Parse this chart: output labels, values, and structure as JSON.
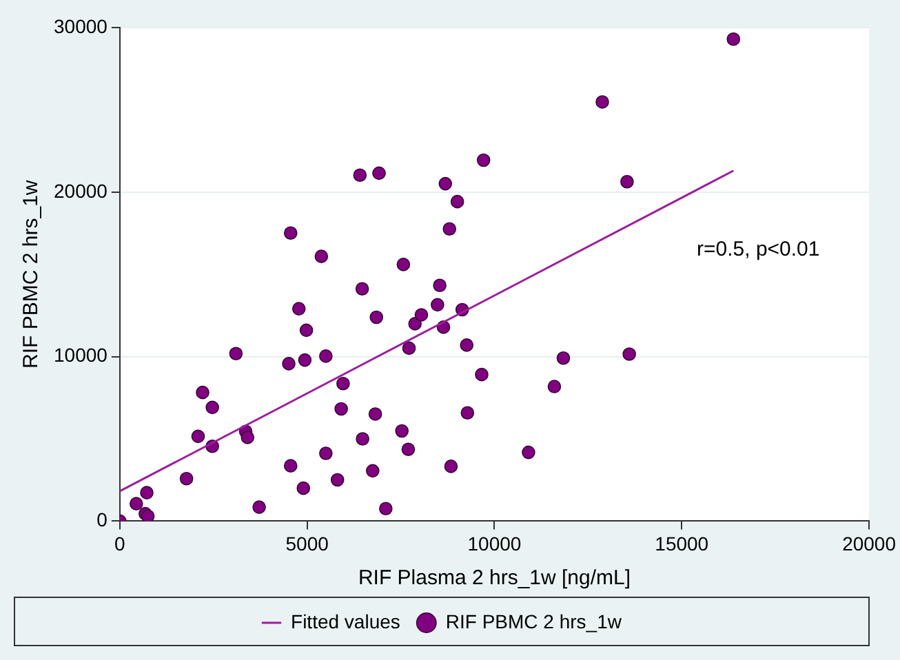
{
  "chart_data": {
    "type": "scatter",
    "xlabel": "RIF Plasma 2 hrs_1w [ng/mL]",
    "ylabel": "RIF PBMC 2 hrs_1w",
    "xlim": [
      0,
      20000
    ],
    "xticks": [
      0,
      5000,
      10000,
      15000,
      20000
    ],
    "ylim": [
      0,
      30000
    ],
    "yticks": [
      0,
      10000,
      20000,
      30000
    ],
    "grid": "y",
    "legend": "bottom",
    "line_style": "solid",
    "annotations": [
      "r=0.5, p<0.01"
    ],
    "series": [
      {
        "name": "Fitted values",
        "type": "line",
        "color": "#9b1f9b",
        "x": [
          0,
          16380
        ],
        "values": [
          1820,
          21300
        ]
      },
      {
        "name": "RIF PBMC 2 hrs_1w",
        "type": "scatter",
        "marker": "circle",
        "color": "#800080",
        "x": [
          0,
          440,
          720,
          680,
          750,
          1780,
          2090,
          2210,
          2470,
          2470,
          3100,
          3360,
          3410,
          3720,
          4560,
          4510,
          4560,
          4780,
          4900,
          4980,
          4940,
          5380,
          5500,
          5500,
          5810,
          5910,
          5960,
          6410,
          6470,
          6480,
          6750,
          6820,
          6850,
          6920,
          7100,
          7530,
          7570,
          7700,
          7720,
          7880,
          8050,
          8480,
          8540,
          8640,
          8690,
          8800,
          8840,
          9010,
          9140,
          9260,
          9280,
          9660,
          9710,
          10910,
          11600,
          11840,
          12880,
          13540,
          13600,
          16380
        ],
        "values": [
          0,
          1060,
          1730,
          450,
          300,
          2580,
          5150,
          7820,
          6910,
          4550,
          10180,
          5450,
          5090,
          850,
          17510,
          9570,
          3360,
          12910,
          2000,
          11600,
          9790,
          16090,
          10030,
          4120,
          2510,
          6820,
          8360,
          21030,
          14120,
          5000,
          3060,
          6510,
          12390,
          21150,
          760,
          5480,
          15600,
          4360,
          10510,
          12000,
          12540,
          13150,
          14330,
          11790,
          20510,
          17760,
          3330,
          19420,
          12850,
          10700,
          6580,
          8910,
          21940,
          4180,
          8180,
          9910,
          25480,
          20630,
          10150,
          29300
        ]
      }
    ]
  }
}
